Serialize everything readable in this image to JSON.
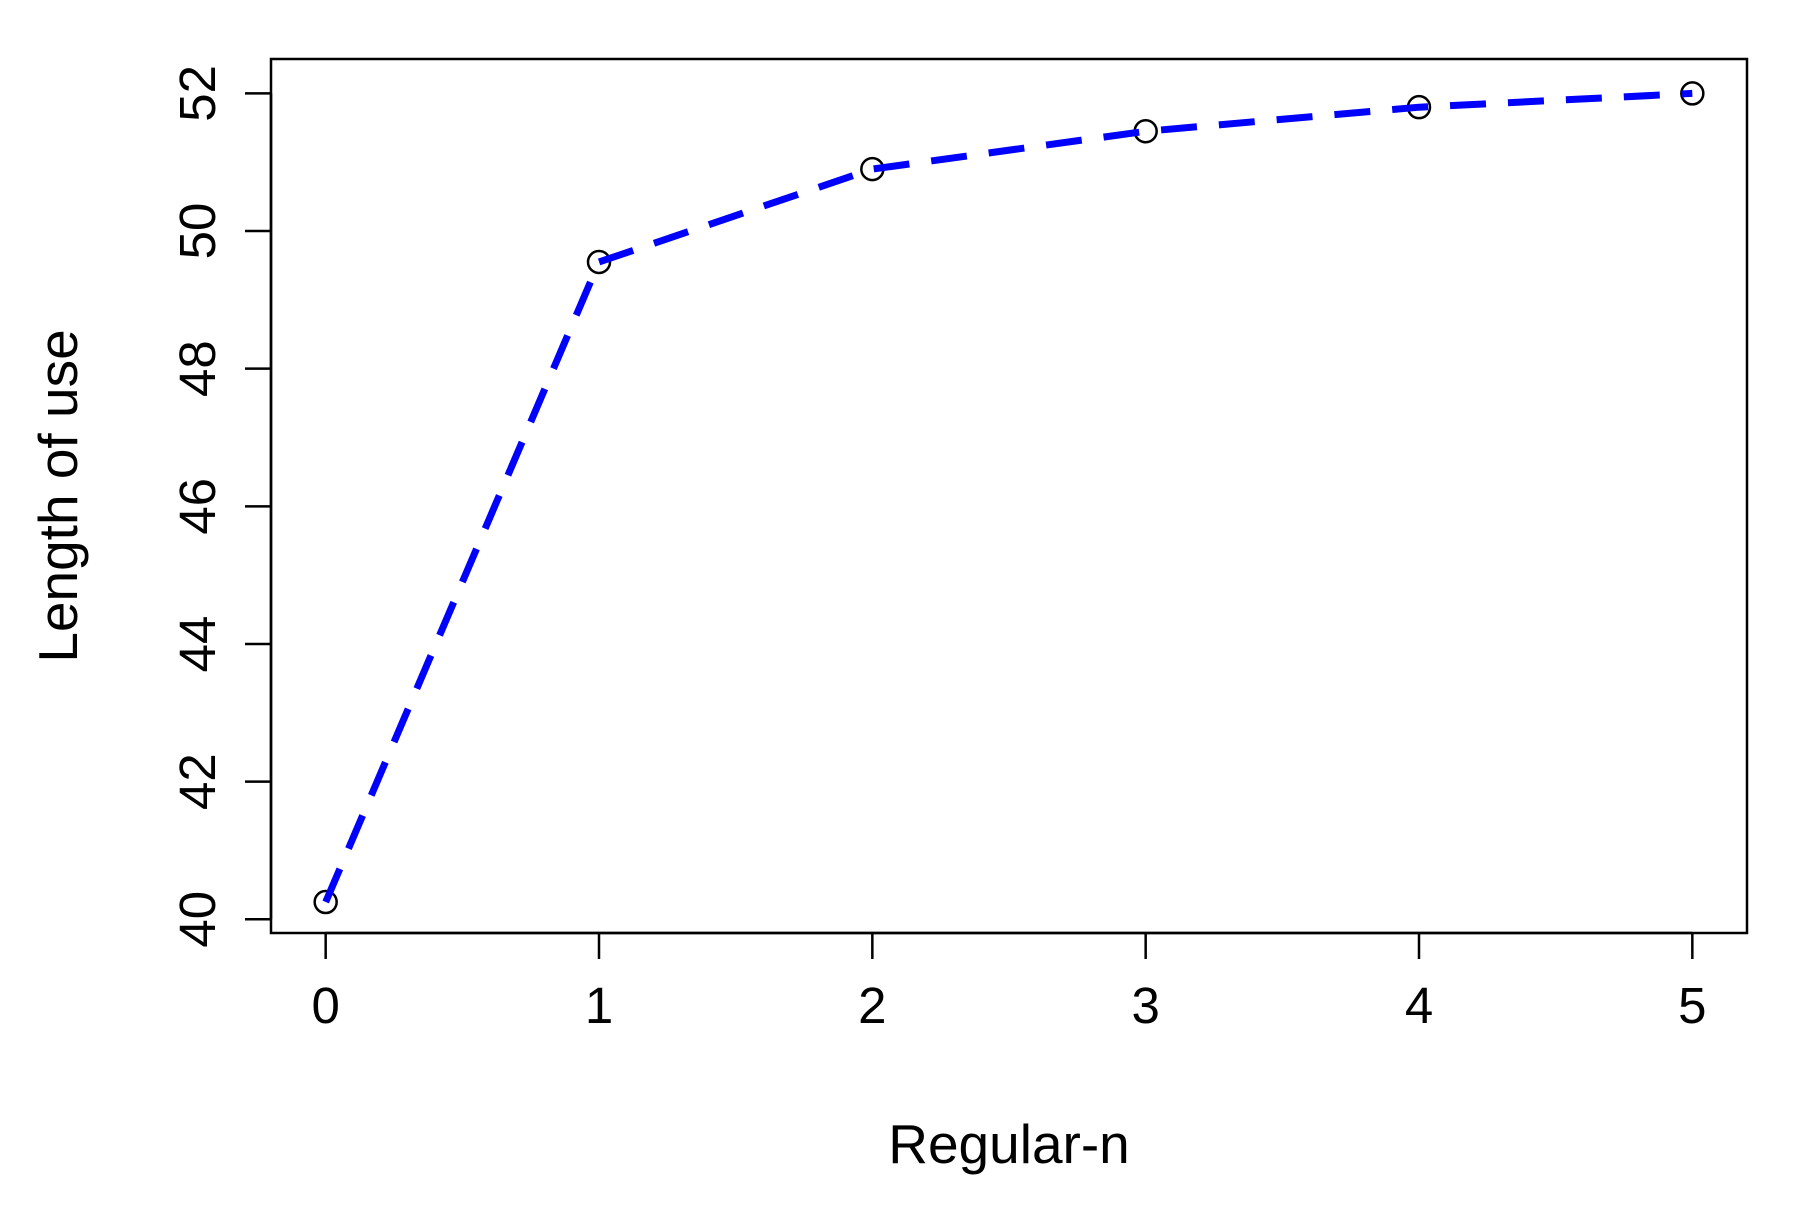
{
  "chart_data": {
    "type": "line",
    "title": "",
    "xlabel": "Regular-n",
    "ylabel": "Length of use",
    "x": [
      0,
      1,
      2,
      3,
      4,
      5
    ],
    "xlim": [
      -0.2,
      5.2
    ],
    "ylim": [
      39.8,
      52.5
    ],
    "xticks": [
      "0",
      "1",
      "2",
      "3",
      "4",
      "5"
    ],
    "yticks": [
      "40",
      "42",
      "44",
      "46",
      "48",
      "50",
      "52"
    ],
    "grid": false,
    "series": [
      {
        "values": [
          40.25,
          49.55,
          50.9,
          51.45,
          51.8,
          52.0
        ],
        "line_color": "#0000ff",
        "line_style": "dashed",
        "marker": "open-circle",
        "marker_color": "#000000"
      }
    ]
  }
}
